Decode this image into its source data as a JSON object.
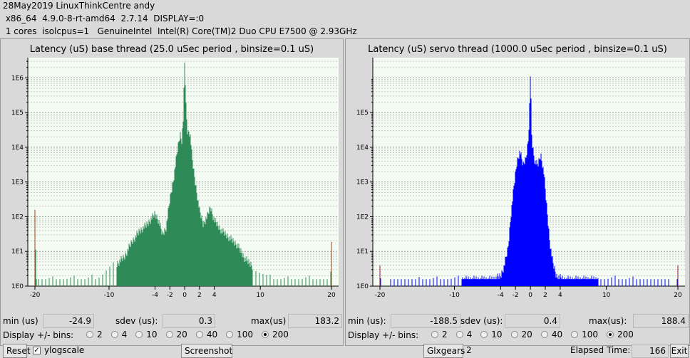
{
  "header": {
    "line1": "28May2019 LinuxThinkCentre andy",
    "line2": " x86_64  4.9.0-8-rt-amd64  2.7.14  DISPLAY=:0",
    "line3": " 1 cores  isolcpus=1   GenuineIntel  Intel(R) Core(TM)2 Duo CPU E7500 @ 2.93GHz"
  },
  "panels": [
    {
      "title": "Latency (uS) base thread (25.0 uSec period , binsize=0.1 uS)",
      "min_label": "min (us)",
      "min_value": "-24.9",
      "sdev_label": "sdev (us):",
      "sdev_value": "0.3",
      "max_label": "max(us)",
      "max_value": "183.2",
      "display_label": "Display +/- bins:",
      "bins": [
        "2",
        "4",
        "10",
        "20",
        "40",
        "100",
        "200"
      ],
      "selected_bin": "200"
    },
    {
      "title": "Latency (uS) servo thread (1000.0 uSec period , binsize=0.1 uS)",
      "min_label": "min (us):",
      "min_value": "-188.5",
      "sdev_label": "sdev (us):",
      "sdev_value": "0.4",
      "max_label": "max(us):",
      "max_value": "188.4",
      "display_label": "Display +/- bins:",
      "bins": [
        "2",
        "4",
        "10",
        "20",
        "40",
        "100",
        "200"
      ],
      "selected_bin": "200"
    }
  ],
  "footer": {
    "reset_label": "Reset",
    "ylogscale_label": "ylogscale",
    "ylogscale_checked": "✓",
    "screenshot_label": "Screenshot",
    "glxgears_label": "Glxgears",
    "glxgears_count": "2",
    "elapsed_label": "Elapsed Time:",
    "elapsed_value": "166",
    "exit_label": "Exit"
  },
  "chart_data": [
    {
      "type": "bar",
      "title": "Latency (uS) base thread (25.0 uSec period , binsize=0.1 uS)",
      "color": "#2e8b57",
      "yscale": "log",
      "ytick_labels": [
        "1E0",
        "1E1",
        "1E2",
        "1E3",
        "1E4",
        "1E5",
        "1E6"
      ],
      "xtick_labels": [
        "-20",
        "-10",
        "-4",
        "-2",
        "0",
        "2",
        "4",
        "10",
        "20"
      ],
      "xlim": [
        -20,
        20
      ],
      "ylim_exp": [
        0,
        6.5
      ],
      "envelope": [
        [
          -20,
          2.2
        ],
        [
          -19.8,
          0
        ],
        [
          -19,
          0.3
        ],
        [
          -17,
          0.3
        ],
        [
          -15,
          0.3
        ],
        [
          -13,
          0.3
        ],
        [
          -11,
          0.45
        ],
        [
          -10,
          0.6
        ],
        [
          -9,
          0.75
        ],
        [
          -8,
          0.95
        ],
        [
          -7,
          1.4
        ],
        [
          -6,
          1.7
        ],
        [
          -5,
          1.9
        ],
        [
          -4,
          2.2
        ],
        [
          -3.5,
          2.0
        ],
        [
          -3,
          1.6
        ],
        [
          -2.5,
          1.8
        ],
        [
          -2,
          2.6
        ],
        [
          -1.5,
          3.2
        ],
        [
          -1,
          4.0
        ],
        [
          -0.6,
          4.5
        ],
        [
          -0.4,
          4.3
        ],
        [
          -0.2,
          4.9
        ],
        [
          0,
          6.6
        ],
        [
          0.2,
          5.2
        ],
        [
          0.4,
          4.5
        ],
        [
          0.6,
          4.6
        ],
        [
          0.8,
          4.4
        ],
        [
          1,
          3.8
        ],
        [
          1.5,
          3.0
        ],
        [
          2,
          2.3
        ],
        [
          2.5,
          1.9
        ],
        [
          3,
          2.1
        ],
        [
          3.5,
          2.4
        ],
        [
          4,
          2.0
        ],
        [
          5,
          1.7
        ],
        [
          6,
          1.5
        ],
        [
          7,
          1.3
        ],
        [
          8,
          0.9
        ],
        [
          9,
          0.7
        ],
        [
          10,
          0.5
        ],
        [
          11,
          0.35
        ],
        [
          12,
          0.3
        ],
        [
          14,
          0.3
        ],
        [
          16,
          0.3
        ],
        [
          18,
          0.3
        ],
        [
          19.8,
          0
        ],
        [
          20,
          1.3
        ]
      ]
    },
    {
      "type": "bar",
      "title": "Latency (uS) servo thread (1000.0 uSec period , binsize=0.1 uS)",
      "color": "#0000ff",
      "yscale": "log",
      "ytick_labels": [
        "1E0",
        "1E1",
        "1E2",
        "1E3",
        "1E4",
        "1E5"
      ],
      "xtick_labels": [
        "-20",
        "-10",
        "-4",
        "-2",
        "0",
        "2",
        "4",
        "10",
        "20"
      ],
      "xlim": [
        -20,
        20
      ],
      "ylim_exp": [
        0,
        6.5
      ],
      "envelope": [
        [
          -20,
          0.6
        ],
        [
          -19.8,
          0
        ],
        [
          -14,
          0.3
        ],
        [
          -5,
          0.3
        ],
        [
          -4,
          0.4
        ],
        [
          -3.5,
          0.7
        ],
        [
          -3,
          1.2
        ],
        [
          -2.6,
          2.2
        ],
        [
          -2.2,
          3.0
        ],
        [
          -1.8,
          3.7
        ],
        [
          -1.4,
          4.0
        ],
        [
          -1,
          3.6
        ],
        [
          -0.6,
          3.8
        ],
        [
          -0.2,
          4.5
        ],
        [
          0,
          6.3
        ],
        [
          0.2,
          4.3
        ],
        [
          0.6,
          3.7
        ],
        [
          1,
          3.6
        ],
        [
          1.4,
          3.9
        ],
        [
          1.8,
          3.4
        ],
        [
          2.2,
          2.4
        ],
        [
          2.6,
          1.4
        ],
        [
          3,
          0.8
        ],
        [
          3.5,
          0.4
        ],
        [
          4.5,
          0.3
        ],
        [
          15,
          0.3
        ],
        [
          19.8,
          0
        ],
        [
          20,
          0.6
        ]
      ]
    }
  ]
}
